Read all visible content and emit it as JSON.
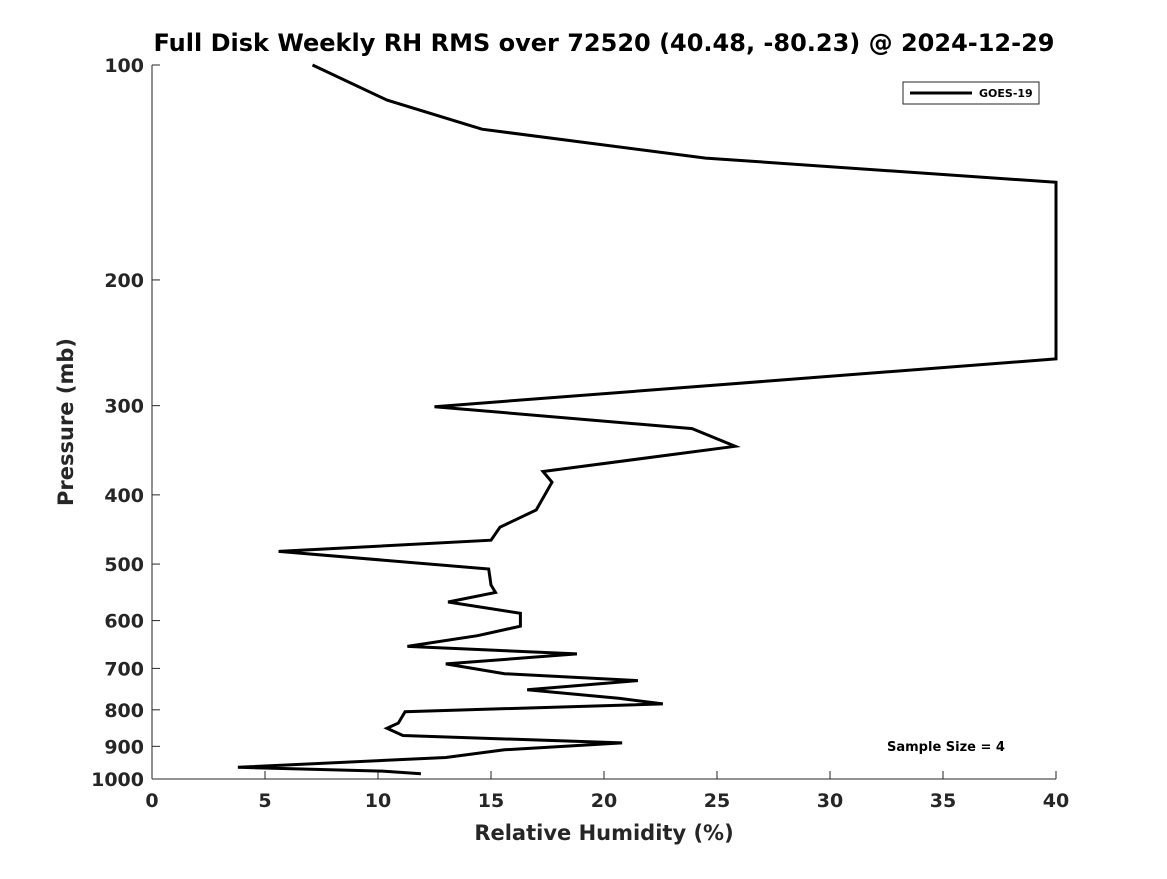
{
  "chart_data": {
    "type": "line",
    "title": "Full Disk Weekly RH RMS over 72520 (40.48, -80.23) @ 2024-12-29",
    "xlabel": "Relative Humidity (%)",
    "ylabel": "Pressure (mb)",
    "xlim": [
      0,
      40
    ],
    "ylim": [
      1000,
      100
    ],
    "yscale": "log",
    "y_reversed": true,
    "grid": false,
    "legend_placement": "top-right",
    "x_ticks": [
      0,
      5,
      10,
      15,
      20,
      25,
      30,
      35,
      40
    ],
    "y_ticks": [
      100,
      200,
      300,
      400,
      500,
      600,
      700,
      800,
      900,
      1000
    ],
    "annotation": "Sample Size = 4",
    "line_color": "#000000",
    "series": [
      {
        "name": "GOES-19",
        "points": [
          [
            7.1,
            100
          ],
          [
            10.4,
            112
          ],
          [
            14.6,
            123
          ],
          [
            24.5,
            135
          ],
          [
            40,
            146
          ],
          [
            40,
            258
          ],
          [
            12.5,
            301
          ],
          [
            23.9,
            323
          ],
          [
            25.8,
            342
          ],
          [
            17.3,
            371
          ],
          [
            17.7,
            384
          ],
          [
            17.0,
            420
          ],
          [
            15.4,
            444
          ],
          [
            15.0,
            463
          ],
          [
            5.6,
            480
          ],
          [
            14.9,
            508
          ],
          [
            15.0,
            535
          ],
          [
            15.2,
            548
          ],
          [
            13.1,
            565
          ],
          [
            16.3,
            586
          ],
          [
            16.3,
            611
          ],
          [
            14.4,
            630
          ],
          [
            11.3,
            652
          ],
          [
            18.8,
            668
          ],
          [
            13.0,
            690
          ],
          [
            15.6,
            712
          ],
          [
            21.5,
            728
          ],
          [
            16.6,
            750
          ],
          [
            20.7,
            771
          ],
          [
            22.6,
            785
          ],
          [
            11.2,
            805
          ],
          [
            10.9,
            835
          ],
          [
            10.4,
            849
          ],
          [
            11.1,
            869
          ],
          [
            20.8,
            890
          ],
          [
            15.6,
            910
          ],
          [
            13.0,
            933
          ],
          [
            3.8,
            963
          ],
          [
            10.2,
            975
          ],
          [
            11.9,
            983
          ]
        ]
      }
    ]
  }
}
